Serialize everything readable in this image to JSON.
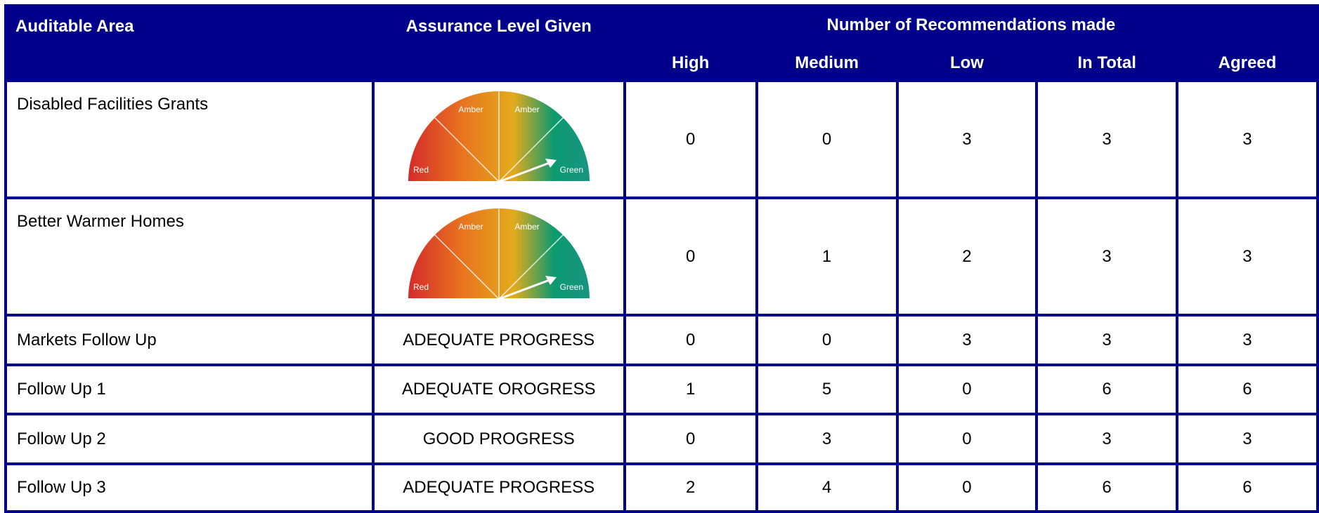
{
  "table": {
    "header": {
      "area": "Auditable Area",
      "assurance": "Assurance Level Given",
      "recommendations": "Number of Recommendations made",
      "columns": [
        "High",
        "Medium",
        "Low",
        "In Total",
        "Agreed"
      ]
    },
    "rows": [
      {
        "area": "Disabled Facilities Grants",
        "gauge": [
          "Red",
          "Amber",
          "Amber",
          "Green"
        ],
        "counts": [
          0,
          0,
          3,
          3,
          3
        ]
      },
      {
        "area": "Better Warmer Homes",
        "gauge": [
          "Red",
          "Amber",
          "Amber",
          "Green"
        ],
        "counts": [
          0,
          1,
          2,
          3,
          3
        ]
      },
      {
        "area": "Markets Follow Up",
        "assurance": "ADEQUATE PROGRESS",
        "counts": [
          0,
          0,
          3,
          3,
          3
        ]
      },
      {
        "area": "Follow Up 1",
        "assurance": "ADEQUATE OROGRESS",
        "counts": [
          1,
          5,
          0,
          6,
          6
        ]
      },
      {
        "area": "Follow Up 2",
        "assurance": "GOOD PROGRESS",
        "counts": [
          0,
          3,
          0,
          3,
          3
        ]
      },
      {
        "area": "Follow Up 3",
        "assurance": "ADEQUATE PROGRESS",
        "counts": [
          2,
          4,
          0,
          6,
          6
        ]
      }
    ]
  }
}
